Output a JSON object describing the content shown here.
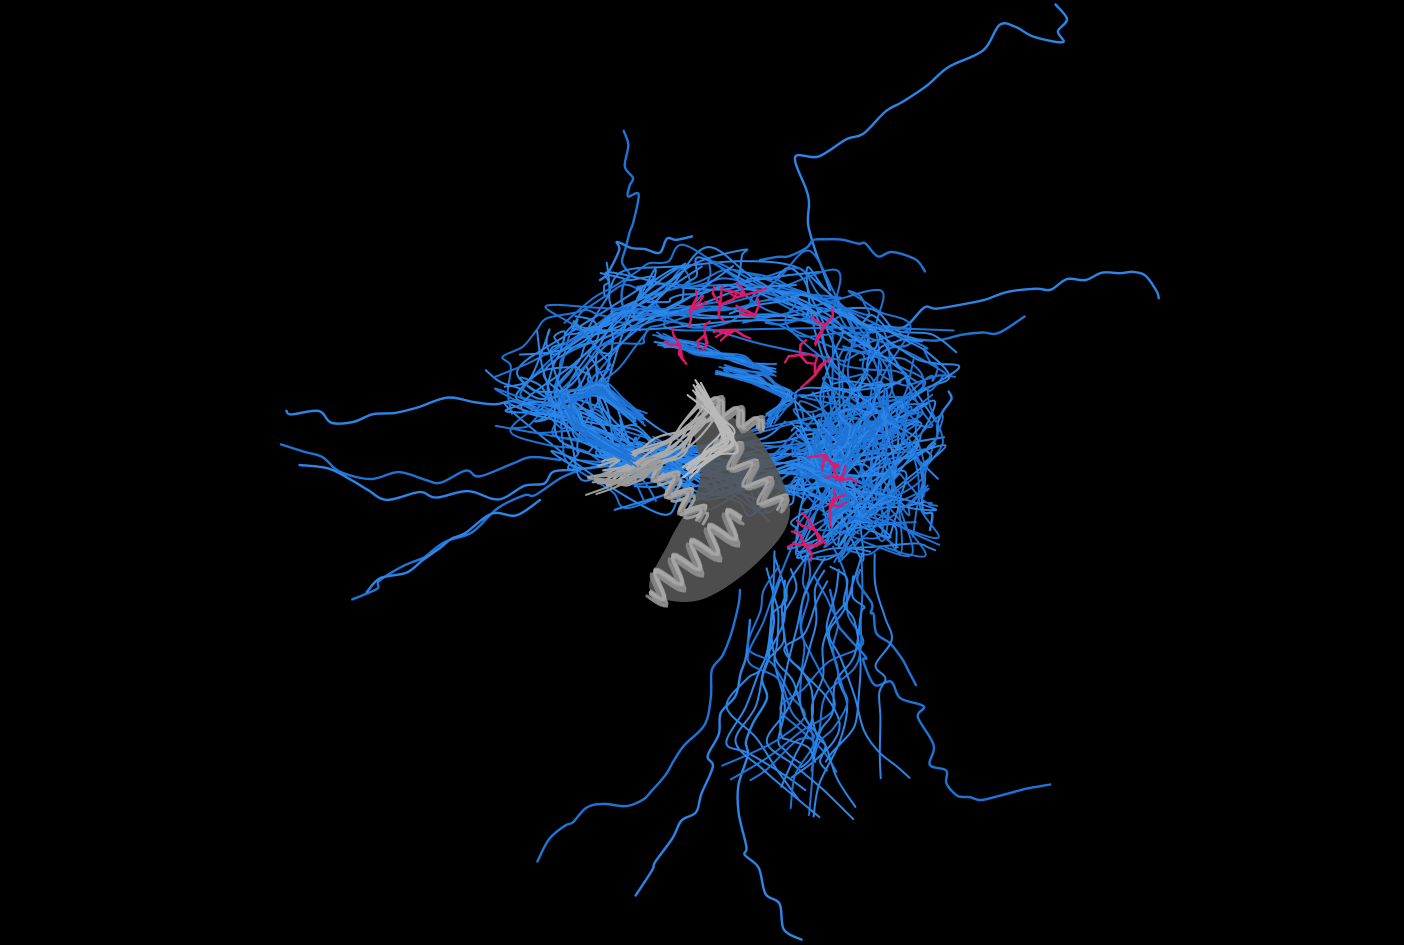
{
  "colors": {
    "background": "#000000",
    "disordered_chain": "#1f74d6",
    "disordered_chain_alt": "#2b86e8",
    "folded_core": "#a8a8a8",
    "folded_core_shadow": "#555555",
    "highlighted_residues": "#e0186a"
  },
  "scene": {
    "type": "molecular-ensemble-render",
    "components": [
      "disordered-chain-ensemble",
      "folded-core",
      "highlighted-residues"
    ]
  }
}
